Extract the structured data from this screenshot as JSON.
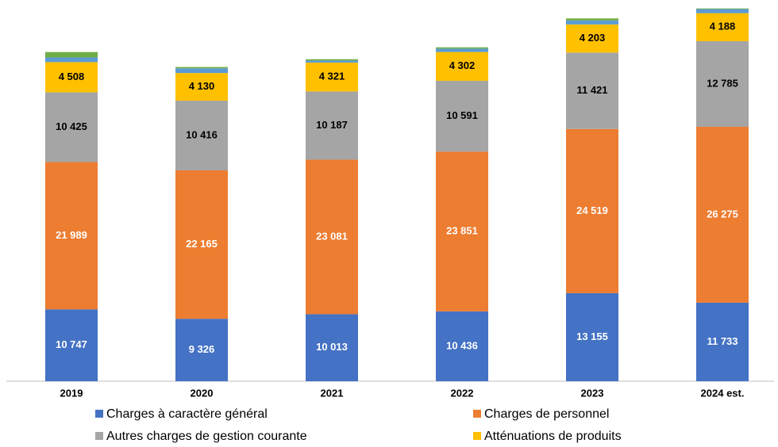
{
  "chart_data": {
    "type": "stacked_bar",
    "categories": [
      "2019",
      "2020",
      "2021",
      "2022",
      "2023",
      "2024 est."
    ],
    "series": [
      {
        "name": "Charges à caractère général",
        "color": "#4472c4",
        "label_color": "#ffffff",
        "values": [
          10747,
          9326,
          10013,
          10436,
          13155,
          11733
        ],
        "value_labels": [
          "10 747",
          "9 326",
          "10 013",
          "10 436",
          "13 155",
          "11 733"
        ]
      },
      {
        "name": "Charges de personnel",
        "color": "#ed7d31",
        "label_color": "#ffffff",
        "values": [
          21989,
          22165,
          23081,
          23851,
          24519,
          26275
        ],
        "value_labels": [
          "21 989",
          "22 165",
          "23 081",
          "23 851",
          "24 519",
          "26 275"
        ]
      },
      {
        "name": "Autres charges de gestion courante",
        "color": "#a5a5a5",
        "label_color": "#000000",
        "values": [
          10425,
          10416,
          10187,
          10591,
          11421,
          12785
        ],
        "value_labels": [
          "10 425",
          "10 416",
          "10 187",
          "10 591",
          "11 421",
          "12 785"
        ]
      },
      {
        "name": "Atténuations de produits",
        "color": "#ffc000",
        "label_color": "#000000",
        "values": [
          4508,
          4130,
          4321,
          4302,
          4203,
          4188
        ],
        "value_labels": [
          "4 508",
          "4 130",
          "4 321",
          "4 302",
          "4 203",
          "4 188"
        ]
      },
      {
        "color": "#5b9bd5",
        "values": [
          700,
          700,
          300,
          500,
          600,
          600
        ]
      },
      {
        "color": "#70ad47",
        "values": [
          800,
          200,
          200,
          200,
          300,
          100
        ]
      }
    ],
    "ylim": [
      0,
      56000
    ]
  }
}
